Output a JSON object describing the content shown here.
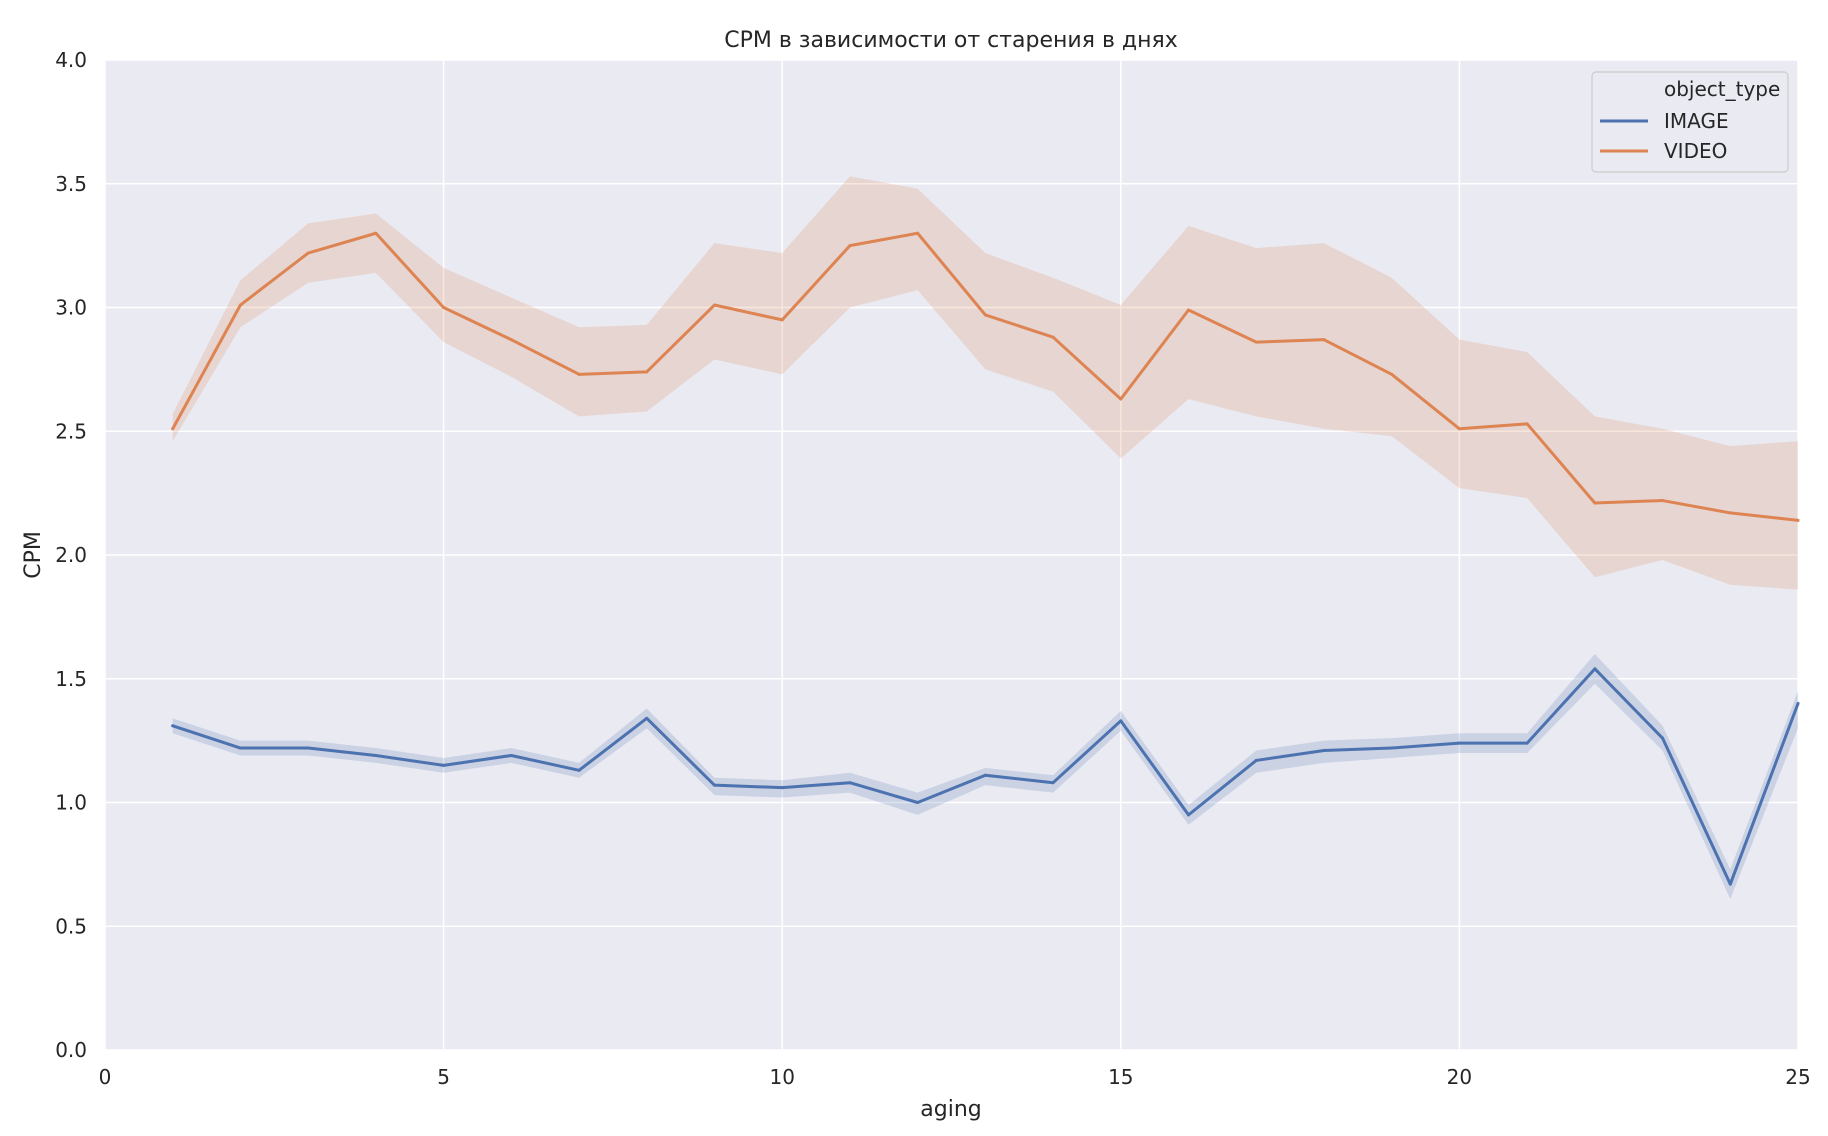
{
  "chart_data": {
    "type": "line",
    "title": "CPM в зависимости от старения в днях",
    "xlabel": "aging",
    "ylabel": "CPM",
    "xlim": [
      0,
      25
    ],
    "ylim": [
      0.0,
      4.0
    ],
    "x_ticks": [
      0,
      5,
      10,
      15,
      20,
      25
    ],
    "y_ticks": [
      0.0,
      0.5,
      1.0,
      1.5,
      2.0,
      2.5,
      3.0,
      3.5,
      4.0
    ],
    "y_tick_labels": [
      "0.0",
      "0.5",
      "1.0",
      "1.5",
      "2.0",
      "2.5",
      "3.0",
      "3.5",
      "4.0"
    ],
    "grid": true,
    "legend": {
      "title": "object_type",
      "position": "top-right"
    },
    "x": [
      1,
      2,
      3,
      4,
      5,
      6,
      7,
      8,
      9,
      10,
      11,
      12,
      13,
      14,
      15,
      16,
      17,
      18,
      19,
      20,
      21,
      22,
      23,
      24,
      25
    ],
    "series": [
      {
        "name": "IMAGE",
        "color": "#4c72b0",
        "values": [
          1.31,
          1.22,
          1.22,
          1.19,
          1.15,
          1.19,
          1.13,
          1.34,
          1.07,
          1.06,
          1.08,
          1.0,
          1.11,
          1.08,
          1.33,
          0.95,
          1.17,
          1.21,
          1.22,
          1.24,
          1.24,
          1.54,
          1.26,
          0.67,
          1.4
        ],
        "ci_low": [
          1.28,
          1.19,
          1.19,
          1.16,
          1.12,
          1.16,
          1.1,
          1.3,
          1.03,
          1.02,
          1.04,
          0.95,
          1.07,
          1.04,
          1.29,
          0.91,
          1.12,
          1.16,
          1.18,
          1.2,
          1.2,
          1.48,
          1.21,
          0.61,
          1.3
        ],
        "ci_high": [
          1.34,
          1.25,
          1.25,
          1.22,
          1.18,
          1.22,
          1.16,
          1.38,
          1.1,
          1.09,
          1.12,
          1.04,
          1.14,
          1.11,
          1.37,
          0.99,
          1.21,
          1.25,
          1.26,
          1.28,
          1.28,
          1.6,
          1.31,
          0.73,
          1.45
        ]
      },
      {
        "name": "VIDEO",
        "color": "#dd8452",
        "values": [
          2.51,
          3.01,
          3.22,
          3.3,
          3.0,
          2.87,
          2.73,
          2.74,
          3.01,
          2.95,
          3.25,
          3.3,
          2.97,
          2.88,
          2.63,
          2.99,
          2.86,
          2.87,
          2.73,
          2.51,
          2.53,
          2.21,
          2.22,
          2.17,
          2.14
        ],
        "ci_low": [
          2.46,
          2.92,
          3.1,
          3.14,
          2.86,
          2.72,
          2.56,
          2.58,
          2.79,
          2.73,
          3.0,
          3.07,
          2.75,
          2.66,
          2.39,
          2.63,
          2.56,
          2.51,
          2.48,
          2.27,
          2.23,
          1.91,
          1.98,
          1.88,
          1.86
        ],
        "ci_high": [
          2.57,
          3.11,
          3.34,
          3.38,
          3.16,
          3.04,
          2.92,
          2.93,
          3.26,
          3.22,
          3.53,
          3.48,
          3.22,
          3.12,
          3.01,
          3.33,
          3.24,
          3.26,
          3.12,
          2.87,
          2.82,
          2.56,
          2.51,
          2.44,
          2.46
        ]
      }
    ]
  }
}
